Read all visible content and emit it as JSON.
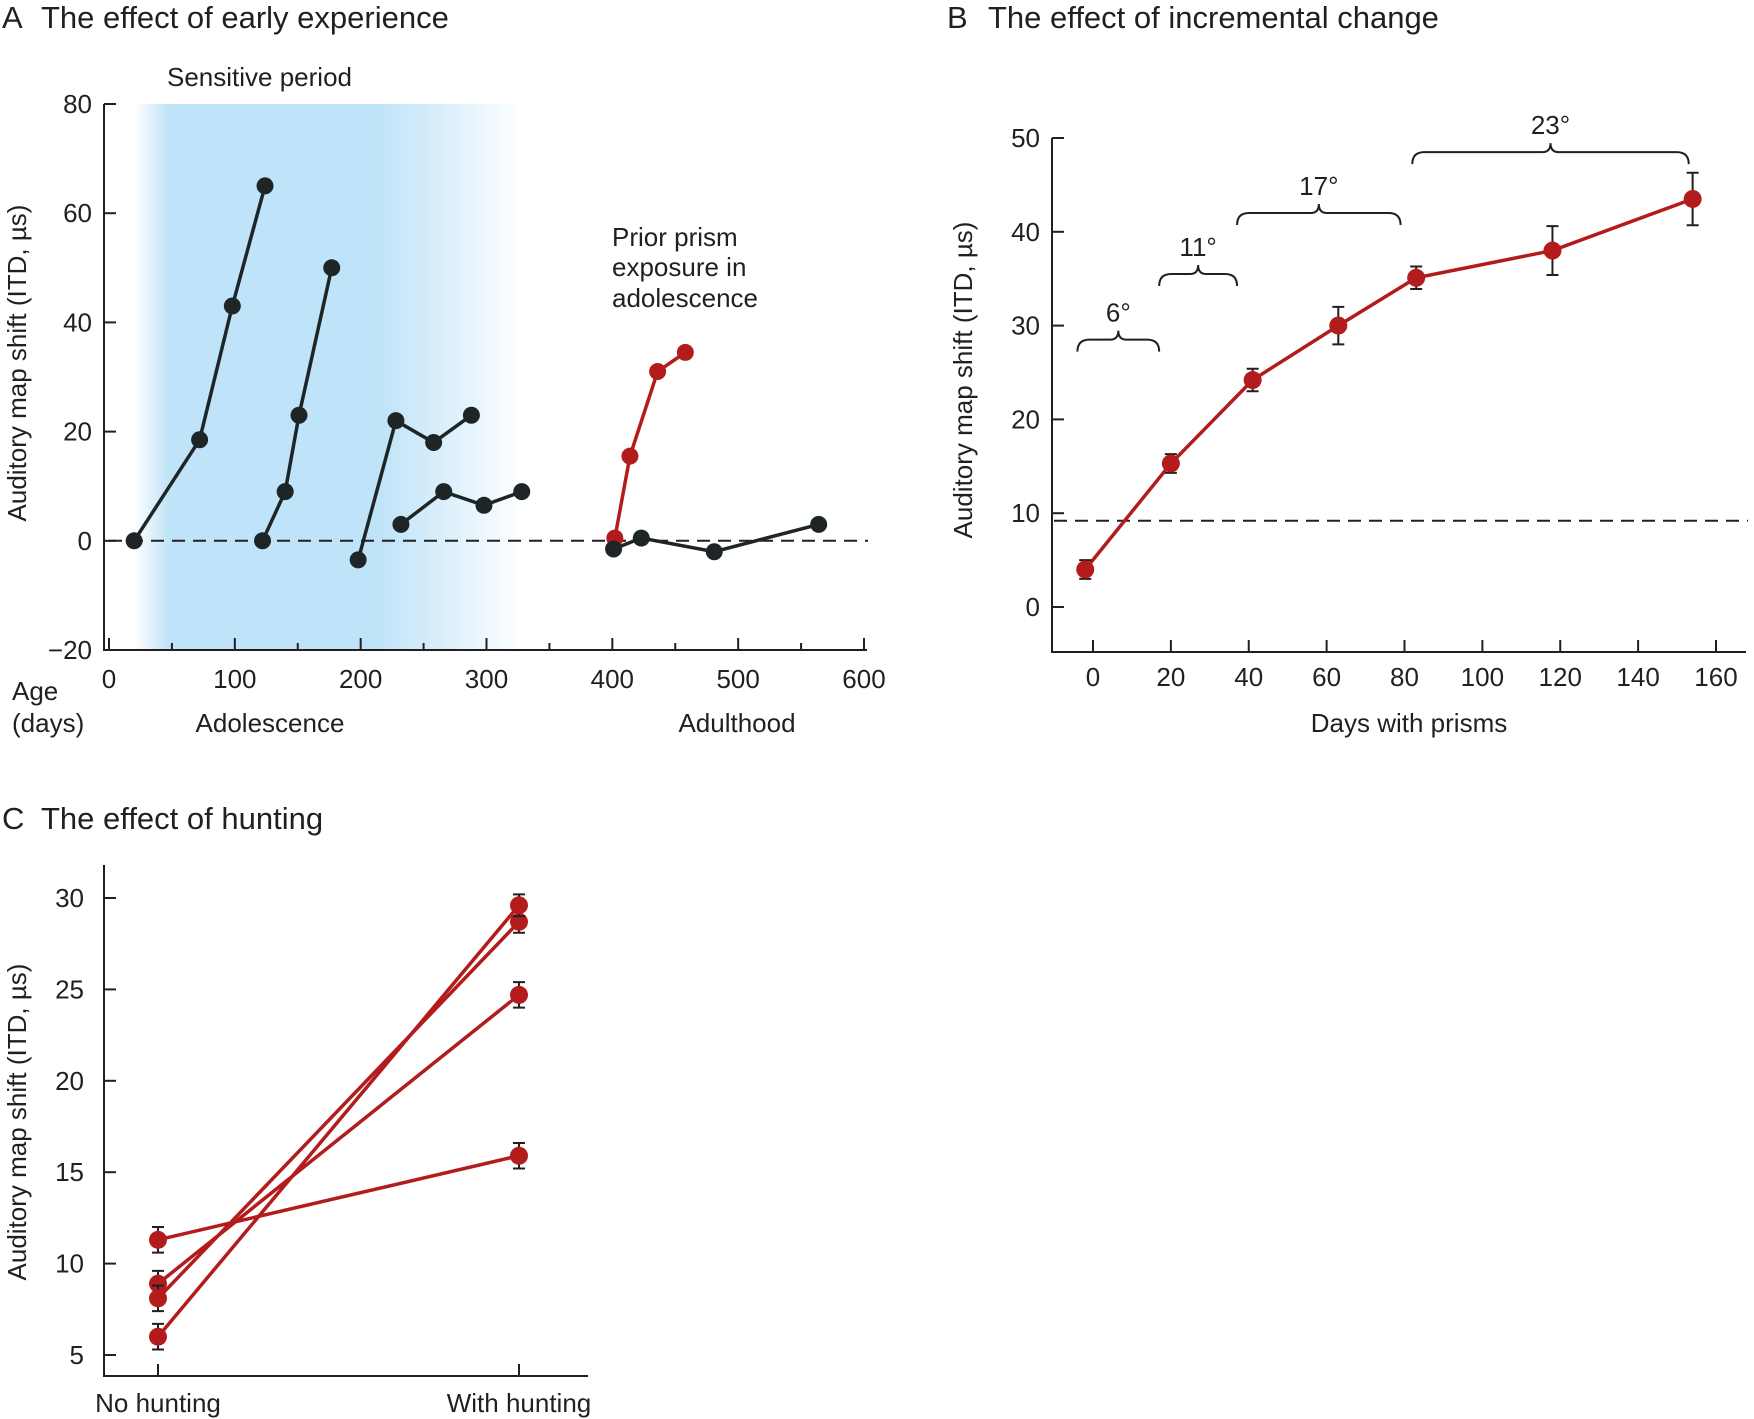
{
  "colors": {
    "red": "#b21c1c",
    "black": "#1e2526",
    "shade": "#bfe3f8"
  },
  "chart_data": [
    {
      "type": "line",
      "panel_letter": "A",
      "title": "The effect of early experience",
      "ylabel": "Auditory map shift (ITD, µs)",
      "xlabel_lines": [
        "Age",
        "(days)"
      ],
      "xlim": [
        0,
        600
      ],
      "ylim": [
        -20,
        80
      ],
      "xticks": [
        0,
        100,
        200,
        300,
        400,
        500,
        600
      ],
      "yticks": [
        -20,
        0,
        20,
        40,
        60,
        80
      ],
      "xtick_labels": [
        "0",
        "100",
        "200",
        "300",
        "400",
        "500",
        "600"
      ],
      "ytick_labels": [
        "−20",
        "0",
        "20",
        "40",
        "60",
        "80"
      ],
      "reference_line_y": 0,
      "shaded_region": {
        "label": "Sensitive period",
        "x": [
          20,
          330
        ]
      },
      "annotations": {
        "adolescence": "Adolescence",
        "adulthood": "Adulthood",
        "prior_lines": [
          "Prior prism",
          "exposure in",
          "adolescence"
        ]
      },
      "series": [
        {
          "color": "black",
          "x": [
            20,
            72,
            98,
            124
          ],
          "y": [
            0,
            18.5,
            43,
            65
          ]
        },
        {
          "color": "black",
          "x": [
            122,
            140,
            151,
            177
          ],
          "y": [
            0,
            9,
            23,
            50
          ]
        },
        {
          "color": "black",
          "x": [
            198,
            228,
            258,
            288
          ],
          "y": [
            -3.5,
            22,
            18,
            23
          ]
        },
        {
          "color": "black",
          "x": [
            232,
            266,
            298,
            328
          ],
          "y": [
            3,
            9,
            6.5,
            9
          ]
        },
        {
          "color": "red",
          "x": [
            402,
            414,
            436,
            458
          ],
          "y": [
            0.5,
            15.5,
            31,
            34.5
          ]
        },
        {
          "color": "black",
          "x": [
            401,
            423,
            481,
            564
          ],
          "y": [
            -1.5,
            0.5,
            -2,
            3
          ]
        }
      ]
    },
    {
      "type": "line",
      "panel_letter": "B",
      "title": "The effect of incremental change",
      "ylabel": "Auditory map shift (ITD, µs)",
      "xlabel": "Days with prisms",
      "xlim": [
        -10,
        170
      ],
      "ylim": [
        -5,
        50
      ],
      "xticks": [
        0,
        20,
        40,
        60,
        80,
        100,
        120,
        140,
        160
      ],
      "yticks": [
        0,
        10,
        20,
        30,
        40,
        50
      ],
      "xtick_labels": [
        "0",
        "20",
        "40",
        "60",
        "80",
        "100",
        "120",
        "140",
        "160"
      ],
      "ytick_labels": [
        "0",
        "10",
        "20",
        "30",
        "40",
        "50"
      ],
      "reference_line_y": 9.2,
      "brackets": [
        {
          "label": "6°",
          "x": [
            -4,
            17
          ],
          "y": 28.5
        },
        {
          "label": "11°",
          "x": [
            17,
            37
          ],
          "y": 35.5
        },
        {
          "label": "17°",
          "x": [
            37,
            79
          ],
          "y": 42
        },
        {
          "label": "23°",
          "x": [
            82,
            153
          ],
          "y": 48.5
        }
      ],
      "series": [
        {
          "color": "red",
          "x": [
            -2,
            20,
            41,
            63,
            83,
            118,
            154
          ],
          "y": [
            4,
            15.3,
            24.2,
            30,
            35.1,
            38,
            43.5
          ],
          "error": [
            1,
            1,
            1.2,
            2,
            1.2,
            2.6,
            2.8
          ]
        }
      ]
    },
    {
      "type": "line",
      "panel_letter": "C",
      "title": "The effect of hunting",
      "ylabel": "Auditory map shift (ITD, µs)",
      "categories": [
        "No hunting",
        "With hunting"
      ],
      "ylim": [
        4,
        31
      ],
      "yticks": [
        5,
        10,
        15,
        20,
        25,
        30
      ],
      "ytick_labels": [
        "5",
        "10",
        "15",
        "20",
        "25",
        "30"
      ],
      "series": [
        {
          "color": "red",
          "values": [
            11.3,
            15.9
          ],
          "error": [
            0.7,
            0.7
          ]
        },
        {
          "color": "red",
          "values": [
            8.9,
            24.7
          ],
          "error": [
            0.7,
            0.7
          ]
        },
        {
          "color": "red",
          "values": [
            8.1,
            28.7
          ],
          "error": [
            0.7,
            0.6
          ]
        },
        {
          "color": "red",
          "values": [
            6.0,
            29.6
          ],
          "error": [
            0.7,
            0.6
          ]
        }
      ]
    }
  ]
}
